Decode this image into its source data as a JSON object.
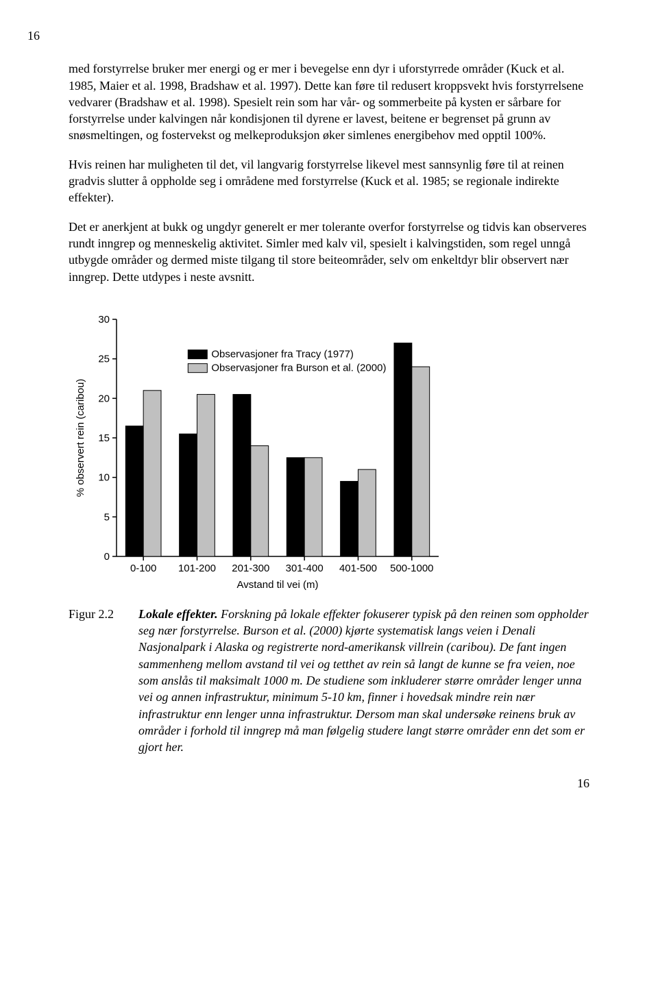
{
  "page_number_top": "16",
  "page_number_bottom": "16",
  "paragraphs": [
    "med forstyrrelse bruker mer energi og er mer i bevegelse enn dyr i uforstyrrede områder (Kuck et al. 1985, Maier et al. 1998, Bradshaw et al. 1997). Dette kan føre til redusert kroppsvekt hvis forstyrrelsene vedvarer (Bradshaw et al. 1998). Spesielt rein som har vår- og sommerbeite på kysten er sårbare for forstyrrelse under kalvingen når kondisjonen til dyrene er lavest, beitene er begrenset på grunn av snøsmeltingen, og fostervekst og melkeproduksjon øker simlenes energibehov med opptil 100%.",
    "Hvis reinen har muligheten til det, vil langvarig forstyrrelse likevel mest sannsynlig føre til at reinen gradvis slutter å oppholde seg i områdene med forstyrrelse (Kuck et al. 1985; se regionale indirekte effekter).",
    "Det er anerkjent at bukk og ungdyr generelt er mer tolerante overfor forstyrrelse og tidvis kan observeres rundt inngrep og menneskelig aktivitet. Simler med kalv vil, spesielt i kalvingstiden, som regel unngå utbygde områder og dermed miste tilgang til store beiteområder, selv om enkeltdyr blir observert nær inngrep. Dette utdypes i neste avsnitt."
  ],
  "chart": {
    "type": "bar",
    "categories": [
      "0-100",
      "101-200",
      "201-300",
      "301-400",
      "401-500",
      "500-1000"
    ],
    "series": [
      {
        "label": "Observasjoner fra Tracy (1977)",
        "color": "#000000",
        "values": [
          16.5,
          15.5,
          20.5,
          12.5,
          9.5,
          27.0
        ]
      },
      {
        "label": "Observasjoner fra Burson et al. (2000)",
        "color": "#c0c0c0",
        "values": [
          21.0,
          20.5,
          14.0,
          12.5,
          11.0,
          24.0
        ]
      }
    ],
    "ylim": [
      0,
      30
    ],
    "ytick_step": 5,
    "yticks": [
      0,
      5,
      10,
      15,
      20,
      25,
      30
    ],
    "ylabel": "% observert rein (caribou)",
    "xlabel": "Avstand til vei (m)",
    "background_color": "#ffffff",
    "axis_color": "#000000",
    "bar_group_width": 0.66,
    "bar_stroke": "#000000",
    "tick_fontsize": 15,
    "label_fontsize": 15,
    "legend_fontsize": 15
  },
  "caption_label": "Figur 2.2",
  "caption_lead": "Lokale effekter.",
  "caption_rest": " Forskning på lokale effekter fokuserer typisk på den reinen som oppholder seg nær forstyrrelse. Burson et al. (2000) kjørte systematisk langs veien i Denali Nasjonalpark i Alaska og registrerte nord-amerikansk villrein (caribou). De fant ingen sammenheng mellom avstand til vei og tetthet av rein så langt de kunne se fra veien, noe som anslås til maksimalt 1000 m. De studiene som inkluderer større områder lenger unna vei og annen infrastruktur, minimum 5-10 km, finner i hovedsak mindre rein nær infrastruktur enn lenger unna infrastruktur. Dersom man skal undersøke reinens bruk av områder i forhold til inngrep må man følgelig studere langt større områder enn det som er gjort her."
}
